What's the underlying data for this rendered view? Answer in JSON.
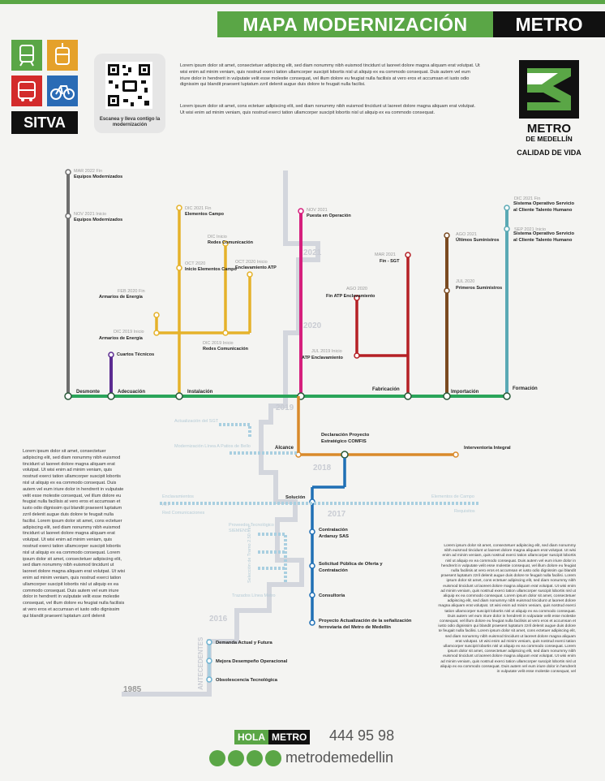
{
  "header": {
    "title_left": "MAPA MODERNIZACIÓN",
    "title_right": "METRO"
  },
  "sitva": {
    "label": "SITVA"
  },
  "qr": {
    "caption": "Escanea y lleva contigo la modernización"
  },
  "intro": {
    "p1": "Lorem ipsum dolor sit amet, consectetuer adipiscing elit, sed diam nonummy nibh euismod tincidunt ut laoreet dolore magna aliquam erat volutpat. Ut wisi enim ad minim veniam, quis nostrud exerci tation ullamcorper suscipit lobortis nisl ut aliquip ex ea commodo consequat. Duis autem vel eum iriure dolor in hendrerit in vulputate velit esse molestie consequat, vel illum dolore eu feugiat nulla facilisis at vero eros et accumsan et iusto odio dignissim qui blandit praesent luptatum zzril delenit augue duis dolore te feugait nulla facilisi.",
    "p2": "Lorem ipsum dolor sit amet, cons ectetuer adipiscing elit, sed diam nonummy nibh euismod tincidunt ut laoreet dolore magna aliquam erat volutpat. Ut wisi enim ad minim veniam, quis nostrud exerci tation ullamcorper suscipit lobortis nisl ut aliquip ex ea commodo consequat."
  },
  "logo": {
    "line1": "METRO",
    "line2": "DE MEDELLÍN",
    "line3": "CALIDAD DE VIDA"
  },
  "years": [
    "2021",
    "2020",
    "2019",
    "2018",
    "2017",
    "2016",
    "1985"
  ],
  "antecedentes_label": "ANTECEDENTES",
  "lines": {
    "gray": {
      "items": [
        {
          "date": "MAR 2022 Fin",
          "text": "Equipos Modernizados"
        },
        {
          "date": "NOV 2021 Inicio",
          "text": "Equipos Modernizados"
        }
      ],
      "station": "Desmonte"
    },
    "purple": {
      "text": "Cuartos Técnicos",
      "station": "Adecuación"
    },
    "yellow": {
      "items": [
        {
          "date": "DIC 2021 Fin",
          "text": "Elementos Campo"
        },
        {
          "date": "DIC Inicio",
          "text": "Redes Comunicación"
        },
        {
          "date": "OCT 2020",
          "text": "Inicio Elementos Campo"
        },
        {
          "date": "OCT 2020 Inicio",
          "text": "Enclavamiento ATP"
        },
        {
          "date": "FEB 2020 Fin",
          "text": "Armarios de Energía"
        },
        {
          "date": "DIC 2019 Inicio",
          "text": "Armarios de Energía"
        },
        {
          "date": "DIC 2019 Inicio",
          "text": "Redes Comunicación"
        }
      ],
      "station": "Instalación"
    },
    "magenta": {
      "date": "NOV 2021",
      "text": "Puesta en Operación"
    },
    "red": {
      "items": [
        {
          "date": "MAR 2021",
          "text": "Fin - SGT"
        },
        {
          "date": "AGO 2020",
          "text": "Fin ATP Enclavamiento"
        },
        {
          "date": "JUL 2019 Inicio",
          "text": "ATP Enclavamiento"
        }
      ],
      "station": "Fabricación"
    },
    "brown": {
      "items": [
        {
          "date": "AGO 2021",
          "text": "Últimos Suministros"
        },
        {
          "date": "JUL 2020",
          "text": "Primeros Suministros"
        }
      ],
      "station": "Importación"
    },
    "teal": {
      "items": [
        {
          "date": "DIC 2021 Fin",
          "text": "Sistema Operativo Servicio al Cliente Talento Humano"
        },
        {
          "date": "SEP 2021 Inicio",
          "text": "Sistema Operativo Servicio al Cliente Talento Humano"
        }
      ],
      "station": "Formación"
    },
    "orange": {
      "station_left": "Alcance",
      "center": "Declaración Proyecto Estratégico COMFIS",
      "right": "Interventoria Integral"
    },
    "blue": {
      "items": [
        "Solución",
        "Contratación Ardanuy SAS",
        "Solicitud Pública de Oferta y Contratación",
        "Consultoría",
        "Proyecto Actualización de la señalización ferroviaria del Metro de Medellín"
      ]
    },
    "antecedentes": {
      "items": [
        "Demanda Actual y Futura",
        "Mejora Desempeño Operacional",
        "Obsolescencia Tecnológica"
      ]
    }
  },
  "dotted": {
    "sgt": "Actualización del SGT",
    "lineaA": "Modernización Línea A Patios de Bello",
    "enclav": "Enclavamientos",
    "atp": "ATP",
    "red": "Red Comunicaciones",
    "campo": "Elementos de Campo",
    "req": "Requisitos",
    "prov": "Proveedor Tecnológico SIEMENS",
    "sel": "Selección de Tramo 2.50 mm",
    "traz": "Trazados Línea Metro"
  },
  "left_text": "Lorem ipsum dolor sit amet, consectetuer adipiscing elit, sed diam nonummy nibh euismod tincidunt ut laoreet dolore magna aliquam erat volutpat. Ut wisi enim ad minim veniam, quis nostrud exerci tation ullamcorper suscipit lobortis nisl ut aliquip ex ea commodo consequat. Duis autem vel eum iriure dolor in hendrerit in vulputate velit esse molestie consequat, vel illum dolore eu feugiat nulla facilisis at vero eros et accumsan et iusto odio dignissim qui blandit praesent luptatum zzril delenit augue duis dolore te feugait nulla facilisi. Lorem ipsum dolor sit amet, cons ectetuer adipiscing elit, sed diam nonummy nibh euismod tincidunt ut laoreet dolore magna aliquam erat volutpat. Ut wisi enim ad minim veniam, quis nostrud exerci tation ullamcorper suscipit lobortis nisl ut aliquip ex ea commodo consequat. Lorem ipsum dolor sit amet, consectetuer adipiscing elit, sed diam nonummy nibh euismod tincidunt ut laoreet dolore magna aliquam erat volutpat. Ut wisi enim ad minim veniam, quis nostrud exerci tation ullamcorper suscipit lobortis nisl ut aliquip ex ea commodo consequat. Duis autem vel eum iriure dolor in hendrerit in vulputate velit esse molestie consequat, vel illum dolore eu feugiat nulla facilisis at vero eros et accumsan et iusto odio dignissim qui blandit praesent luptatum zzril delenit",
  "right_text": "Lorem ipsum dolor sit amet, consectetuer adipiscing elit, sed diam nonummy nibh euismod tincidunt ut laoreet dolore magna aliquam erat volutpat. Ut wisi enim ad minim veniam, quis nostrud exerci tation ullamcorper suscipit lobortis nisl ut aliquip ex ea commodo consequat. Duis autem vel eum iriure dolor in hendrerit in vulputate velit esse molestie consequat, vel illum dolore eu feugiat nulla facilisis at vero eros et accumsan et iusto odio dignissim qui blandit praesent luptatum zzril delenit augue duis dolore te feugait nulla facilisi. Lorem ipsum dolor sit amet, cons ectetuer adipiscing elit, sed diam nonummy nibh euismod tincidunt ut laoreet dolore magna aliquam erat volutpat. Ut wisi enim ad minim veniam, quis nostrud exerci tation ullamcorper suscipit lobortis nisl ut aliquip ex ea commodo consequat. Lorem ipsum dolor sit amet, consectetuer adipiscing elit, sed diam nonummy nibh euismod tincidunt ut laoreet dolore magna aliquam erat volutpat. Ut wisi enim ad minim veniam, quis nostrud exerci tation ullamcorper suscipit lobortis nisl ut aliquip ex ea commodo consequat. Duis autem vel eum iriure dolor in hendrerit in vulputate velit esse molestie consequat, vel illum dolore eu feugiat nulla facilisis at vero eros et accumsan et iusto odio dignissim qui blandit praesent luptatum zzril delenit augue duis dolore te feugait nulla facilisi. Lorem ipsum dolor sit amet, cons ectetuer adipiscing elit, sed diam nonummy nibh euismod tincidunt ut laoreet dolore magna aliquam erat volutpat. Ut wisi enim ad minim veniam, quis nostrud exerci tation ullamcorper suscipit lobortis nisl ut aliquip ex ea commodo consequat. Lorem ipsum dolor sit amet, consectetuer adipiscing elit, sed diam nonummy nibh euismod tincidunt ut laoreet dolore magna aliquam erat volutpat. Ut wisi enim ad minim veniam, quis nostrud exerci tation ullamcorper suscipit lobortis nisl ut aliquip ex ea commodo consequat. Duis autem vel eum iriure dolor in hendrerit in vulputate velit esse molestie consequat, vel",
  "footer": {
    "hola": "HOLA",
    "metro": "METRO",
    "phone": "444 95 98",
    "web": "metrodemedellin"
  },
  "colors": {
    "green": "#5aa646",
    "gray": "#6e6e6e",
    "purple": "#5b2b91",
    "yellow": "#e5b22a",
    "magenta": "#d61f7d",
    "red": "#b52025",
    "brown": "#7a4a20",
    "teal": "#5aa9b5",
    "orange": "#d98a2b",
    "blue": "#1f6fb5",
    "bg_line": "#d3d6dd"
  }
}
